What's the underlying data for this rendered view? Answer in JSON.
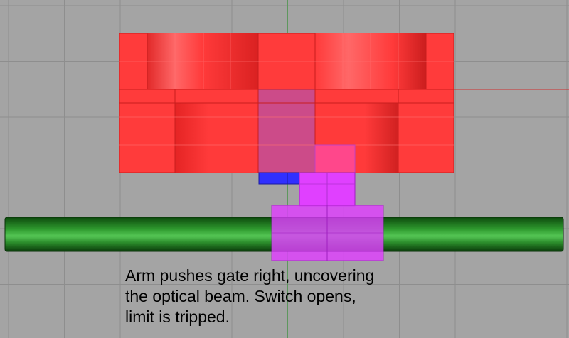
{
  "caption": {
    "lines": [
      "Arm pushes gate right, uncovering",
      "the optical beam.  Switch opens,",
      "limit is tripped."
    ]
  },
  "colors": {
    "background": "#a4a4a4",
    "grid": "#8e8e8e",
    "y_axis": "#2fa02f",
    "x_axis": "#d03030",
    "housing": "#ff3b3b",
    "housing_edge": "#c81e1e",
    "optical_beam": "#3030ff",
    "gate": "#e040ff",
    "rod": "#1f8a1f"
  },
  "parts": {
    "housing": "red sensor housing",
    "beam": "optical beam (blue)",
    "gate": "magenta gate",
    "arm": "green rod / arm"
  }
}
